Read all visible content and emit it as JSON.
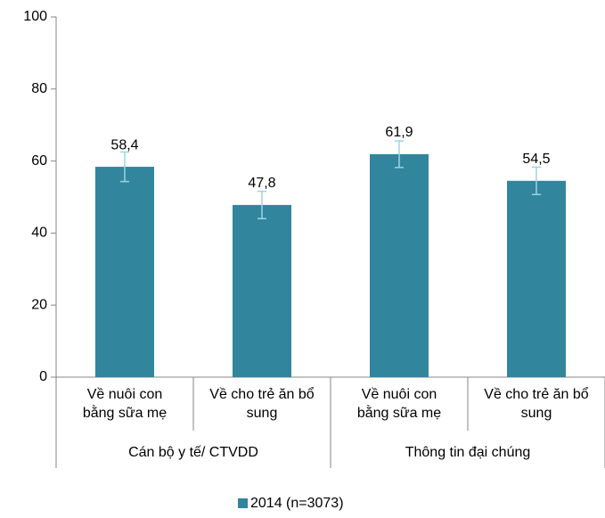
{
  "chart_data": {
    "type": "bar",
    "categories": [
      "Về nuôi con bằng sữa mẹ",
      "Về cho trẻ ăn bổ sung",
      "Về nuôi con bằng sữa mẹ",
      "Về cho trẻ ăn bổ sung"
    ],
    "groups": [
      "Cán bộ y tế/ CTVDD",
      "Thông tin đại chúng"
    ],
    "series": [
      {
        "name": "2014 (n=3073)",
        "color": "#31859c",
        "values": [
          58.4,
          47.8,
          61.9,
          54.5
        ],
        "value_labels": [
          "58,4",
          "47,8",
          "61,9",
          "54,5"
        ],
        "errors": [
          4.1,
          3.8,
          3.7,
          3.8
        ],
        "error_color": "#9dd3e6"
      }
    ],
    "ylim": [
      0,
      100
    ],
    "yticks": [
      0,
      20,
      40,
      60,
      80,
      100
    ],
    "legend": "bottom"
  }
}
